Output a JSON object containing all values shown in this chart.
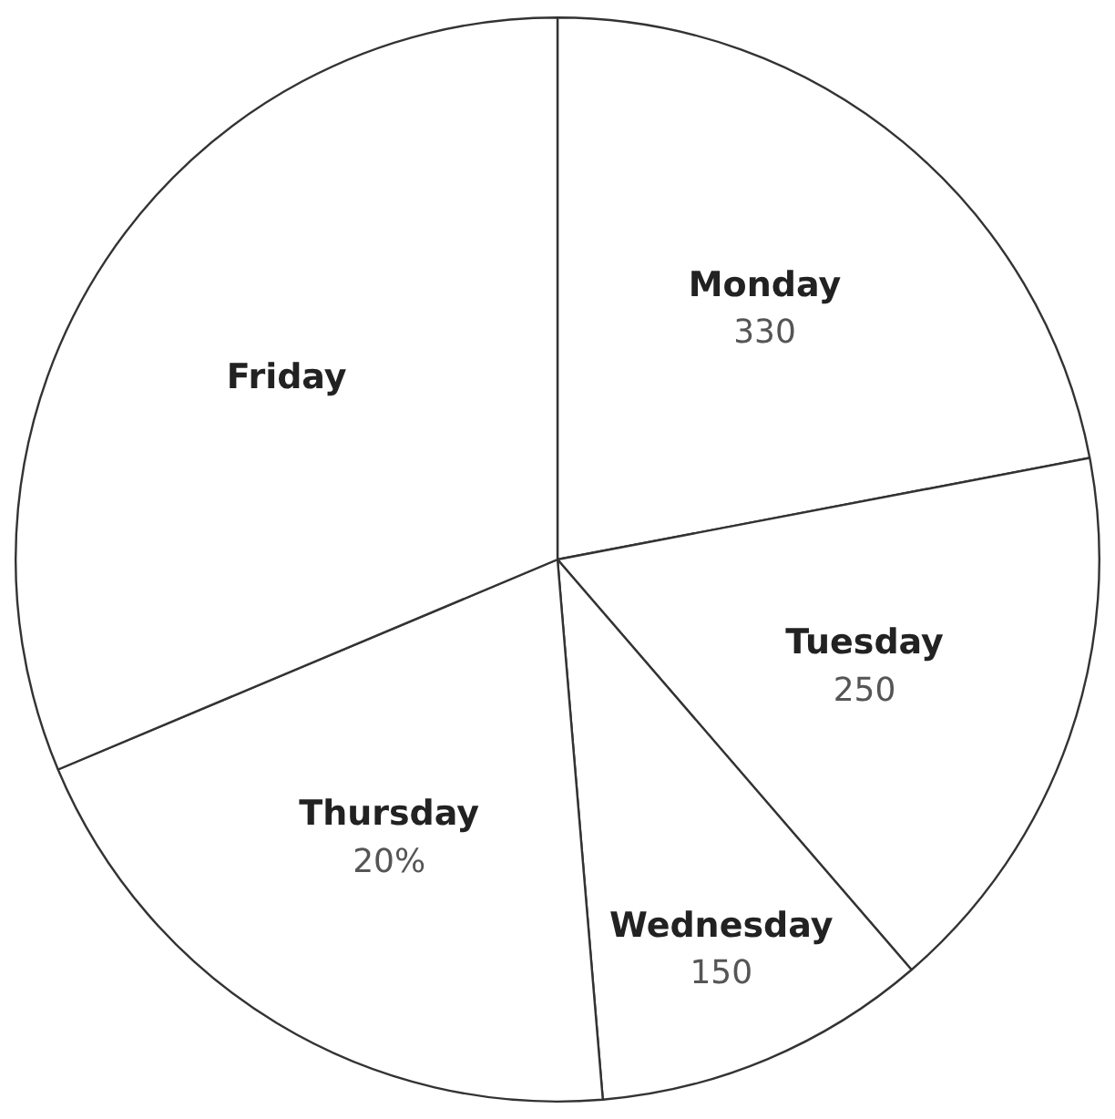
{
  "chart_data": {
    "type": "pie",
    "categories": [
      "Monday",
      "Tuesday",
      "Wednesday",
      "Thursday",
      "Friday"
    ],
    "values": [
      330,
      250,
      150,
      300,
      470
    ],
    "value_labels": [
      "330",
      "250",
      "150",
      null,
      null
    ],
    "annotations": [
      {
        "text": "20%",
        "x": "Thursday"
      }
    ],
    "colors": [
      "#ffffff",
      "#ffffff",
      "#ffffff",
      "#ffffff",
      "#ffffff"
    ],
    "legend": false
  }
}
